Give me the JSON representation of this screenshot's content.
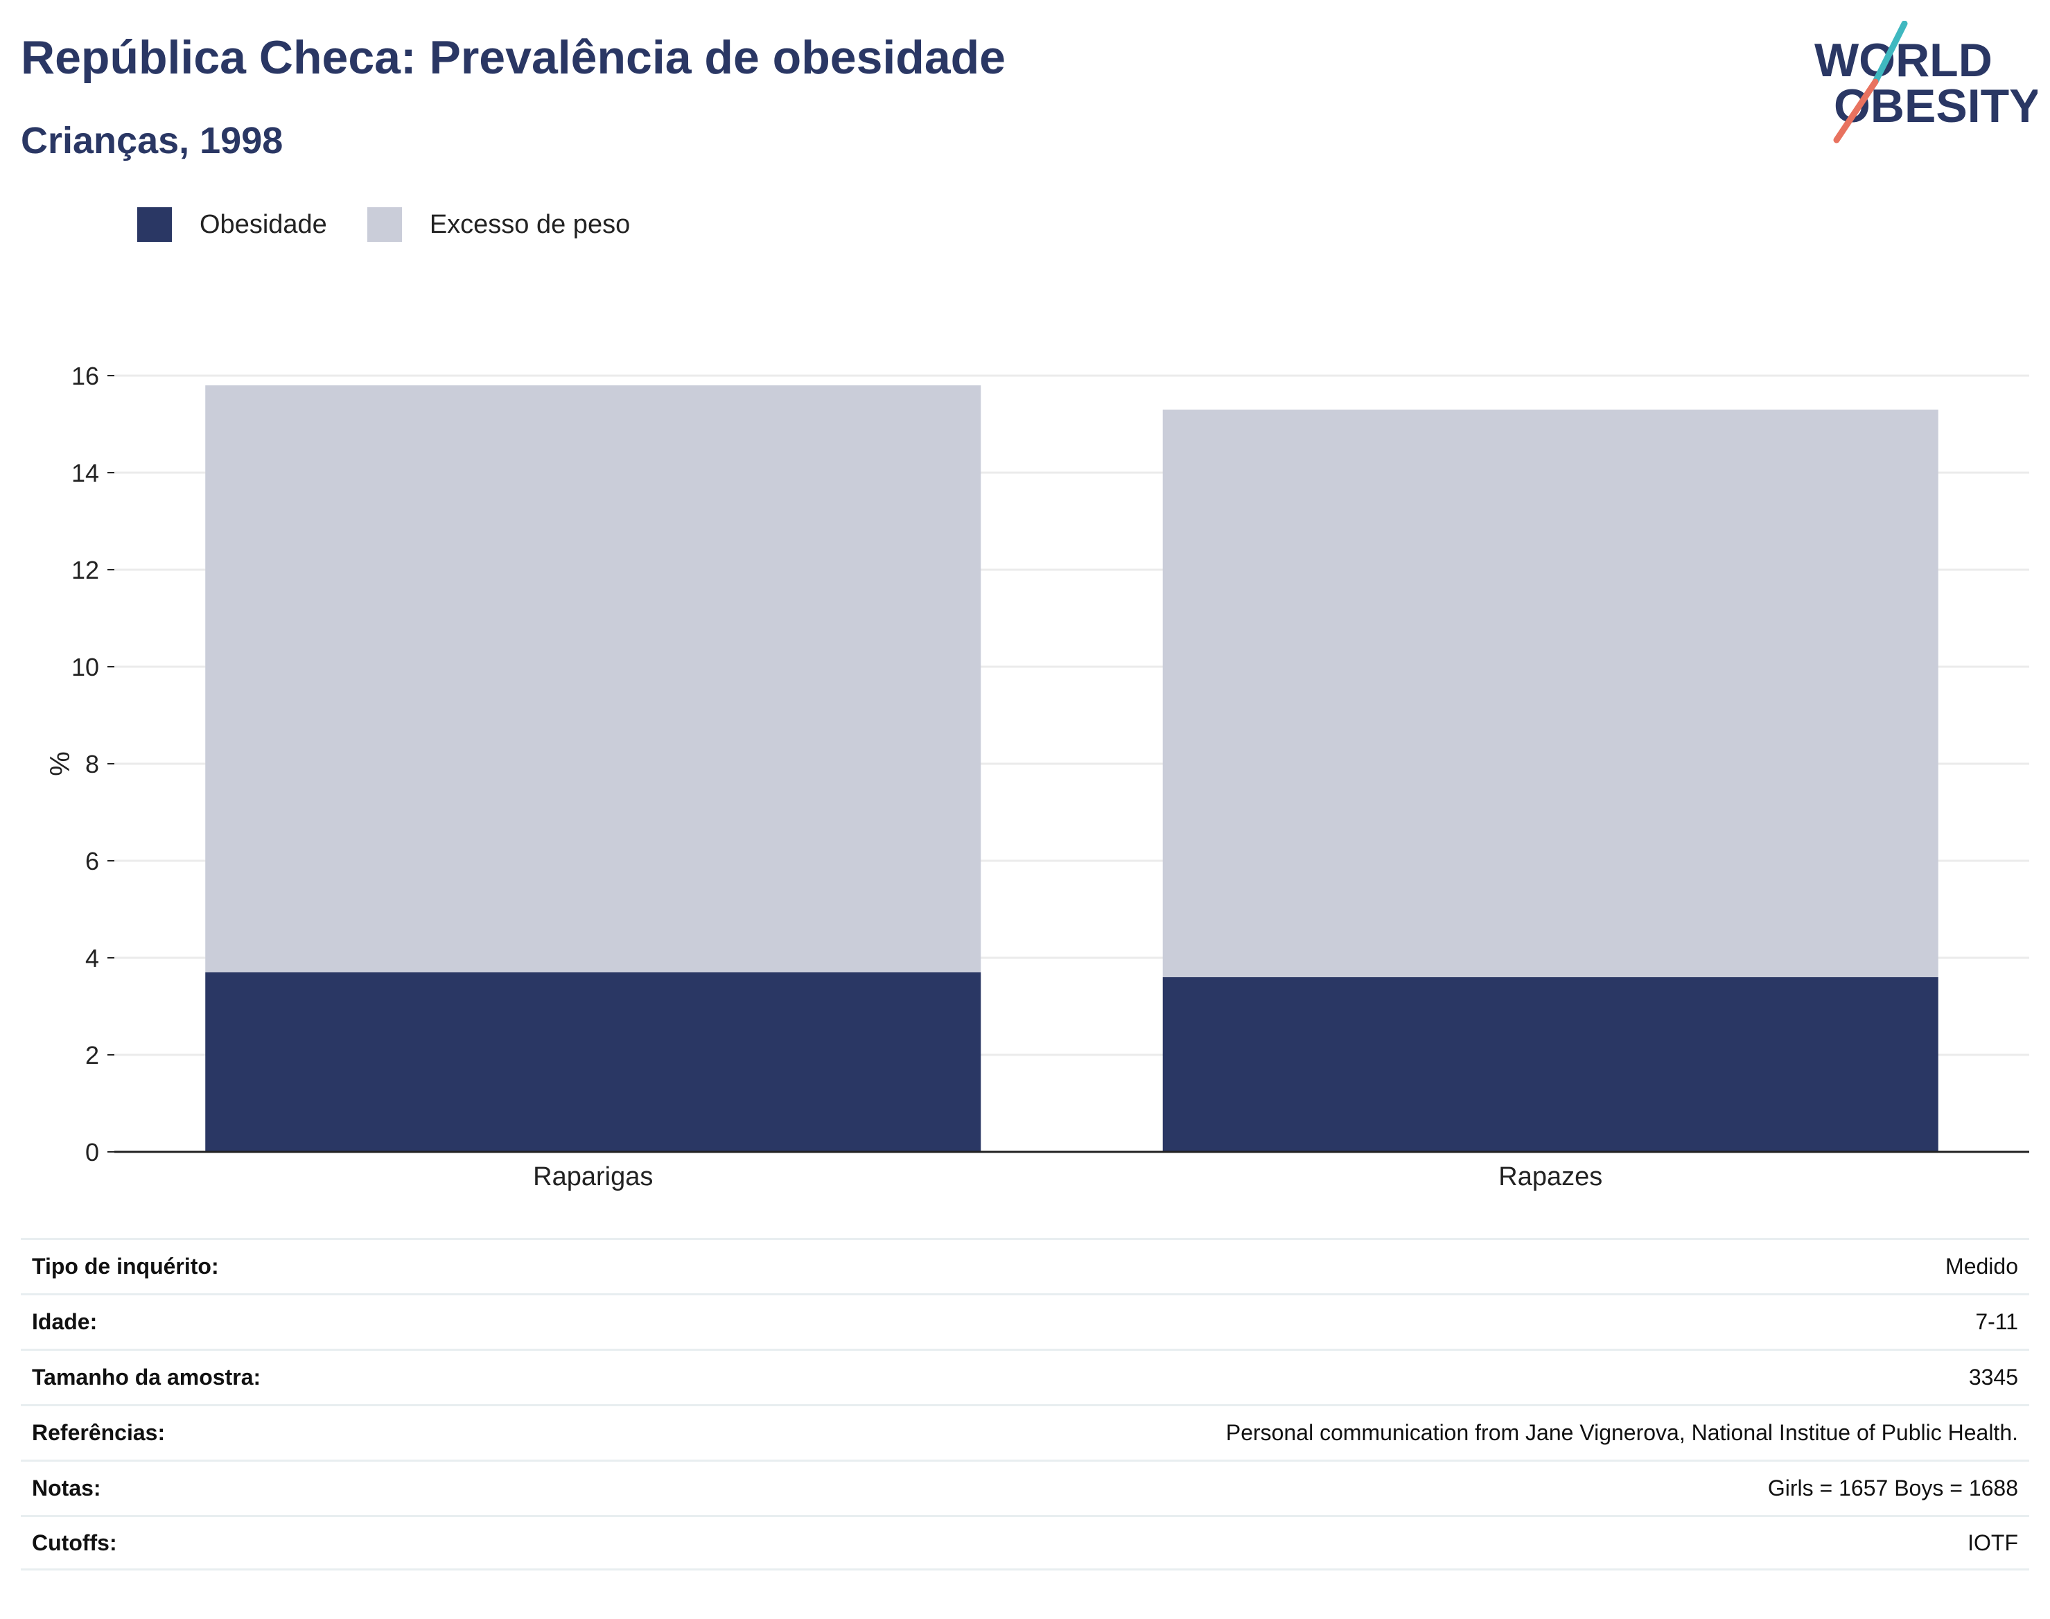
{
  "header": {
    "title": "República Checa: Prevalência de obesidade",
    "subtitle": "Crianças, 1998"
  },
  "logo": {
    "line1": "WORLD",
    "line2": "OBESITY",
    "colors": {
      "text": "#2a3764",
      "teal": "#3fb8c0",
      "coral": "#e8725f"
    }
  },
  "colors": {
    "obesity": "#2a3764",
    "overweight": "#cacdd9",
    "grid": "#ebebeb",
    "axis": "#222222"
  },
  "chart_data": {
    "type": "bar",
    "stacked": true,
    "categories": [
      "Raparigas",
      "Rapazes"
    ],
    "series": [
      {
        "name": "Obesidade",
        "values": [
          3.7,
          3.6
        ]
      },
      {
        "name": "Excesso de peso",
        "values": [
          12.1,
          11.7
        ]
      }
    ],
    "ylabel": "%",
    "ylim": [
      0,
      16
    ],
    "yticks": [
      0,
      2,
      4,
      6,
      8,
      10,
      12,
      14,
      16
    ],
    "grid": true,
    "legend_position": "top-left"
  },
  "info": [
    {
      "label": "Tipo de inquérito:",
      "value": "Medido"
    },
    {
      "label": "Idade:",
      "value": "7-11"
    },
    {
      "label": "Tamanho da amostra:",
      "value": "3345"
    },
    {
      "label": "Referências:",
      "value": "Personal communication from Jane Vignerova, National Institue of Public Health."
    },
    {
      "label": "Notas:",
      "value": "Girls = 1657 Boys = 1688"
    },
    {
      "label": "Cutoffs:",
      "value": "IOTF"
    }
  ]
}
